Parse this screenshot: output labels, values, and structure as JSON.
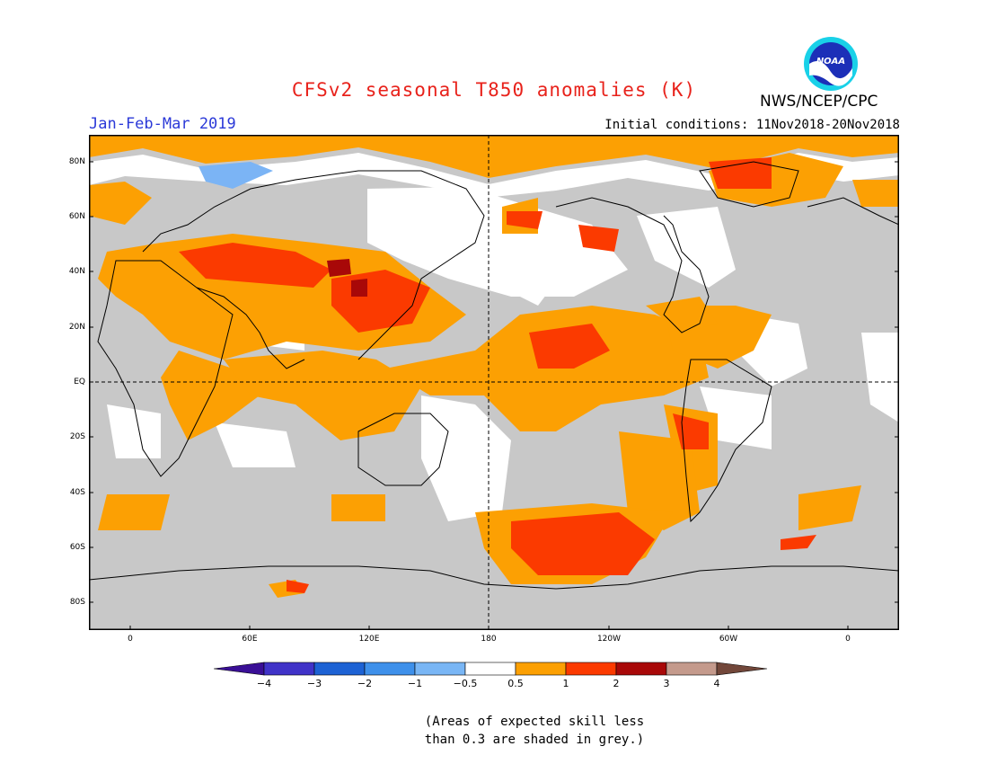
{
  "title": "CFSv2 seasonal T850 anomalies (K)",
  "period": "Jan-Feb-Mar 2019",
  "initial_conditions": "Initial conditions: 11Nov2018-20Nov2018",
  "agency": "NWS/NCEP/CPC",
  "logo_text": "NOAA",
  "colors": {
    "title": "#e8221b",
    "period": "#2b39d8",
    "grey": "#c8c8c8",
    "orange": "#fca003",
    "red_orange": "#fb3a00",
    "dark_red": "#a80808",
    "light_blue": "#7bb4f5"
  },
  "latitude_labels": [
    "80N",
    "60N",
    "40N",
    "20N",
    "EQ",
    "20S",
    "40S",
    "60S",
    "80S"
  ],
  "longitude_labels": [
    "0",
    "60E",
    "120E",
    "180",
    "120W",
    "60W",
    "0"
  ],
  "legend": {
    "ticks": [
      "−4",
      "−3",
      "−2",
      "−1",
      "−0.5",
      "0.5",
      "1",
      "2",
      "3",
      "4"
    ],
    "bins": [
      {
        "range": "-4 to -3",
        "color": "#4033c8"
      },
      {
        "range": "-3 to -2",
        "color": "#1d62d4"
      },
      {
        "range": "-2 to -1",
        "color": "#3e90ea"
      },
      {
        "range": "-1 to -0.5",
        "color": "#79b6f5"
      },
      {
        "range": "-0.5 to 0.5",
        "color": "#ffffff"
      },
      {
        "range": "0.5 to 1",
        "color": "#fca003"
      },
      {
        "range": "1 to 2",
        "color": "#fb3a00"
      },
      {
        "range": "2 to 3",
        "color": "#a80808"
      },
      {
        "range": "3 to 4",
        "color": "#c49a8c"
      }
    ],
    "low_arrow_color": "#3a0f96",
    "high_arrow_color": "#72473a"
  },
  "note_line1": "(Areas of expected skill less",
  "note_line2": "than 0.3 are shaded in grey.)"
}
